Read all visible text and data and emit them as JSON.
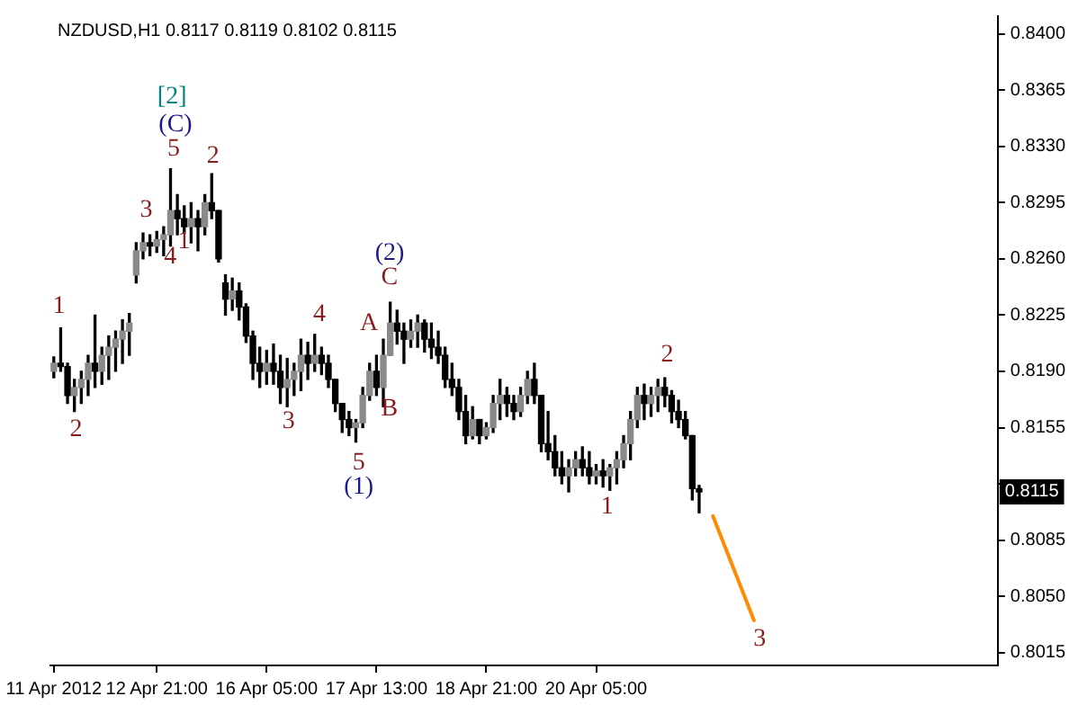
{
  "chart_data": {
    "type": "candlestick",
    "title": "NZDUSD,H1 0.8117 0.8119 0.8102 0.8115",
    "categories": [
      "11 Apr 2012",
      null,
      null,
      null,
      null,
      null,
      null,
      null,
      null,
      null,
      null,
      null,
      null,
      null,
      null,
      "12 Apr 21:00",
      null,
      null,
      null,
      null,
      null,
      null,
      null,
      null,
      null,
      null,
      null,
      null,
      null,
      null,
      null,
      "16 Apr 05:00",
      null,
      null,
      null,
      null,
      null,
      null,
      null,
      null,
      null,
      null,
      null,
      null,
      null,
      null,
      null,
      "17 Apr 13:00",
      null,
      null,
      null,
      null,
      null,
      null,
      null,
      null,
      null,
      null,
      null,
      null,
      null,
      null,
      null,
      "18 Apr 21:00",
      null,
      null,
      null,
      null,
      null,
      null,
      null,
      null,
      null,
      null,
      null,
      null,
      null,
      null,
      null,
      "20 Apr 05:00",
      null,
      null,
      null,
      null,
      null,
      null,
      null,
      null,
      null,
      null,
      null,
      null,
      null,
      null,
      null,
      null,
      null,
      null,
      null,
      null,
      null,
      null,
      null,
      null,
      null,
      null,
      null,
      null,
      null,
      null,
      null,
      null,
      null,
      null,
      null,
      null,
      null,
      null,
      null,
      null,
      null,
      null,
      null,
      null,
      null,
      null,
      null,
      null,
      null,
      null,
      null,
      null,
      null,
      null,
      null,
      null,
      null,
      null
    ],
    "ohlc": [
      [
        0.819,
        0.8199,
        0.8186,
        0.8195
      ],
      [
        0.8195,
        0.8217,
        0.819,
        0.8193
      ],
      [
        0.8193,
        0.8195,
        0.817,
        0.8175
      ],
      [
        0.8175,
        0.8185,
        0.8165,
        0.818
      ],
      [
        0.818,
        0.819,
        0.817,
        0.8185
      ],
      [
        0.8185,
        0.82,
        0.8175,
        0.8195
      ],
      [
        0.8195,
        0.8225,
        0.818,
        0.819
      ],
      [
        0.819,
        0.8205,
        0.8182,
        0.82
      ],
      [
        0.82,
        0.8212,
        0.8185,
        0.8205
      ],
      [
        0.8205,
        0.8215,
        0.819,
        0.821
      ],
      [
        0.821,
        0.8222,
        0.8195,
        0.8215
      ],
      [
        0.8215,
        0.8226,
        0.82,
        0.822
      ],
      [
        0.825,
        0.827,
        0.8245,
        0.8265
      ],
      [
        0.8265,
        0.8276,
        0.826,
        0.827
      ],
      [
        0.827,
        0.8275,
        0.8262,
        0.8268
      ],
      [
        0.8268,
        0.8277,
        0.8264,
        0.8272
      ],
      [
        0.8272,
        0.828,
        0.8262,
        0.8275
      ],
      [
        0.8275,
        0.8316,
        0.8268,
        0.829
      ],
      [
        0.829,
        0.83,
        0.8275,
        0.8285
      ],
      [
        0.8285,
        0.8293,
        0.8276,
        0.828
      ],
      [
        0.828,
        0.8295,
        0.827,
        0.8285
      ],
      [
        0.8285,
        0.829,
        0.8265,
        0.828
      ],
      [
        0.828,
        0.83,
        0.8275,
        0.8295
      ],
      [
        0.8295,
        0.8313,
        0.8285,
        0.829
      ],
      [
        0.829,
        0.829,
        0.8258,
        0.826
      ],
      [
        0.8245,
        0.825,
        0.8225,
        0.8235
      ],
      [
        0.8235,
        0.8248,
        0.8228,
        0.824
      ],
      [
        0.824,
        0.8245,
        0.8222,
        0.823
      ],
      [
        0.823,
        0.8232,
        0.8208,
        0.8212
      ],
      [
        0.8212,
        0.8215,
        0.8185,
        0.8195
      ],
      [
        0.8195,
        0.8205,
        0.818,
        0.819
      ],
      [
        0.819,
        0.8203,
        0.8182,
        0.8195
      ],
      [
        0.8195,
        0.8207,
        0.8182,
        0.819
      ],
      [
        0.819,
        0.82,
        0.817,
        0.818
      ],
      [
        0.818,
        0.8198,
        0.8168,
        0.8185
      ],
      [
        0.8185,
        0.8195,
        0.8175,
        0.819
      ],
      [
        0.819,
        0.821,
        0.8178,
        0.82
      ],
      [
        0.82,
        0.8208,
        0.8185,
        0.8195
      ],
      [
        0.8195,
        0.8213,
        0.819,
        0.82
      ],
      [
        0.82,
        0.8205,
        0.8188,
        0.8195
      ],
      [
        0.8195,
        0.82,
        0.818,
        0.8185
      ],
      [
        0.8185,
        0.8185,
        0.8165,
        0.817
      ],
      [
        0.817,
        0.817,
        0.8152,
        0.816
      ],
      [
        0.816,
        0.8165,
        0.815,
        0.8155
      ],
      [
        0.8155,
        0.816,
        0.8146,
        0.8158
      ],
      [
        0.8158,
        0.818,
        0.8155,
        0.8175
      ],
      [
        0.8175,
        0.8195,
        0.8172,
        0.819
      ],
      [
        0.819,
        0.82,
        0.8175,
        0.818
      ],
      [
        0.818,
        0.821,
        0.8168,
        0.82
      ],
      [
        0.82,
        0.8233,
        0.82,
        0.822
      ],
      [
        0.822,
        0.8228,
        0.8207,
        0.8215
      ],
      [
        0.8215,
        0.822,
        0.8195,
        0.821
      ],
      [
        0.821,
        0.8222,
        0.8205,
        0.8215
      ],
      [
        0.8215,
        0.8225,
        0.8205,
        0.822
      ],
      [
        0.822,
        0.8222,
        0.8202,
        0.821
      ],
      [
        0.821,
        0.822,
        0.8198,
        0.8205
      ],
      [
        0.8205,
        0.8215,
        0.8195,
        0.82
      ],
      [
        0.82,
        0.8205,
        0.818,
        0.8185
      ],
      [
        0.8185,
        0.8195,
        0.8175,
        0.818
      ],
      [
        0.818,
        0.8185,
        0.816,
        0.8165
      ],
      [
        0.8165,
        0.8175,
        0.8145,
        0.815
      ],
      [
        0.815,
        0.8168,
        0.8148,
        0.816
      ],
      [
        0.816,
        0.816,
        0.8145,
        0.815
      ],
      [
        0.815,
        0.8158,
        0.8148,
        0.8155
      ],
      [
        0.8155,
        0.8175,
        0.8152,
        0.817
      ],
      [
        0.817,
        0.8185,
        0.816,
        0.8175
      ],
      [
        0.8175,
        0.818,
        0.8162,
        0.817
      ],
      [
        0.817,
        0.8175,
        0.816,
        0.8165
      ],
      [
        0.8165,
        0.818,
        0.8162,
        0.8175
      ],
      [
        0.8175,
        0.819,
        0.817,
        0.8185
      ],
      [
        0.8185,
        0.8195,
        0.817,
        0.8175
      ],
      [
        0.8175,
        0.8175,
        0.814,
        0.8145
      ],
      [
        0.8145,
        0.8165,
        0.8135,
        0.814
      ],
      [
        0.814,
        0.815,
        0.8125,
        0.813
      ],
      [
        0.813,
        0.814,
        0.812,
        0.8125
      ],
      [
        0.8125,
        0.8135,
        0.8115,
        0.813
      ],
      [
        0.813,
        0.814,
        0.8125,
        0.8135
      ],
      [
        0.8135,
        0.8143,
        0.8125,
        0.813
      ],
      [
        0.813,
        0.814,
        0.812,
        0.8125
      ],
      [
        0.8125,
        0.8132,
        0.812,
        0.8128
      ],
      [
        0.8128,
        0.8135,
        0.8118,
        0.8125
      ],
      [
        0.8125,
        0.8132,
        0.8116,
        0.813
      ],
      [
        0.813,
        0.814,
        0.812,
        0.8135
      ],
      [
        0.8135,
        0.815,
        0.813,
        0.8145
      ],
      [
        0.8145,
        0.8165,
        0.8135,
        0.816
      ],
      [
        0.816,
        0.818,
        0.8155,
        0.8175
      ],
      [
        0.8175,
        0.8182,
        0.816,
        0.817
      ],
      [
        0.817,
        0.818,
        0.8162,
        0.8175
      ],
      [
        0.8175,
        0.8185,
        0.8165,
        0.818
      ],
      [
        0.818,
        0.8186,
        0.8168,
        0.8175
      ],
      [
        0.8175,
        0.8178,
        0.8158,
        0.8165
      ],
      [
        0.8165,
        0.8172,
        0.8155,
        0.816
      ],
      [
        0.816,
        0.8165,
        0.8148,
        0.815
      ],
      [
        0.815,
        0.815,
        0.811,
        0.8117
      ],
      [
        0.8117,
        0.8119,
        0.8102,
        0.8115
      ],
      null,
      null,
      null,
      null,
      null,
      null,
      null,
      null,
      null,
      null,
      null,
      null,
      null,
      null,
      null,
      null,
      null,
      null,
      null,
      null,
      null,
      null,
      null,
      null,
      null,
      null,
      null,
      null,
      null,
      null,
      null,
      null,
      null,
      null,
      null,
      null,
      null,
      null,
      null,
      null,
      null,
      null,
      null
    ],
    "series": [
      {
        "type": "line",
        "color": "#ff8c00",
        "values": [
          null,
          null,
          null,
          null,
          null,
          null,
          null,
          null,
          null,
          null,
          null,
          null,
          null,
          null,
          null,
          null,
          null,
          null,
          null,
          null,
          null,
          null,
          null,
          null,
          null,
          null,
          null,
          null,
          null,
          null,
          null,
          null,
          null,
          null,
          null,
          null,
          null,
          null,
          null,
          null,
          null,
          null,
          null,
          null,
          null,
          null,
          null,
          null,
          null,
          null,
          null,
          null,
          null,
          null,
          null,
          null,
          null,
          null,
          null,
          null,
          null,
          null,
          null,
          null,
          null,
          null,
          null,
          null,
          null,
          null,
          null,
          null,
          null,
          null,
          null,
          null,
          null,
          null,
          null,
          null,
          null,
          null,
          null,
          null,
          null,
          null,
          null,
          null,
          null,
          null,
          null,
          null,
          null,
          null,
          null,
          null,
          0.81,
          null,
          null,
          null,
          null,
          null,
          0.8035,
          null,
          null,
          null,
          null,
          null,
          null,
          null,
          null,
          null,
          null,
          null,
          null,
          null,
          null,
          null,
          null,
          null,
          null,
          null,
          null,
          null,
          null,
          null,
          null,
          null,
          null,
          null,
          null,
          null,
          null,
          null,
          null,
          null,
          null,
          null
        ]
      }
    ],
    "ylim": [
      0.8007,
      0.8411
    ],
    "yticks": [
      {
        "value": 0.8015,
        "label": "0.8015"
      },
      {
        "value": 0.805,
        "label": "0.8050"
      },
      {
        "value": 0.8085,
        "label": "0.8085"
      },
      {
        "value": 0.812,
        "label": null
      },
      {
        "value": 0.8155,
        "label": "0.8155"
      },
      {
        "value": 0.819,
        "label": "0.8190"
      },
      {
        "value": 0.8225,
        "label": "0.8225"
      },
      {
        "value": 0.826,
        "label": "0.8260"
      },
      {
        "value": 0.8295,
        "label": "0.8295"
      },
      {
        "value": 0.833,
        "label": "0.8330"
      },
      {
        "value": 0.8365,
        "label": "0.8365"
      },
      {
        "value": 0.84,
        "label": "0.8400"
      }
    ],
    "annotations": [
      "[2]",
      "(C)",
      "5",
      "3",
      "4",
      "1",
      "2",
      "1",
      "2",
      "3",
      "4",
      "A",
      "5",
      "(1)",
      "B",
      "C",
      "(2)",
      "1",
      "2",
      "3",
      "0.8115"
    ],
    "grid": false,
    "legend": false
  }
}
